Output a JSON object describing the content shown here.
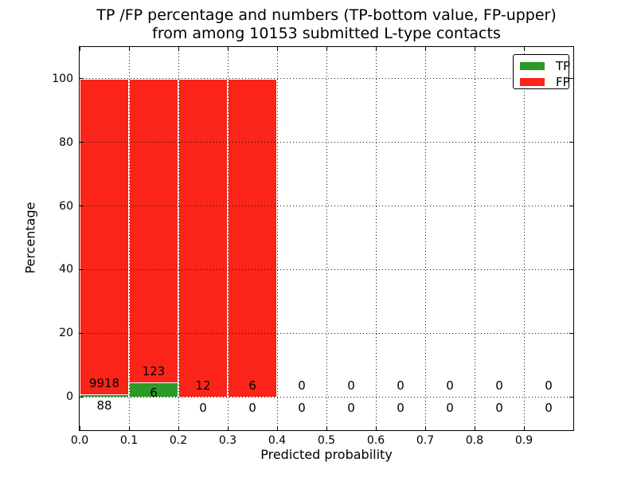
{
  "chart_data": {
    "type": "bar",
    "stacked": true,
    "title_lines": [
      "TP /FP percentage and numbers (TP-bottom value, FP-upper)",
      "from among 10153 submitted L-type contacts"
    ],
    "xlabel": "Predicted probability",
    "ylabel": "Percentage",
    "total_submitted": 10153,
    "xlim": [
      0.0,
      1.0
    ],
    "ylim": [
      -10.5,
      110
    ],
    "xticks": [
      0.0,
      0.1,
      0.2,
      0.3,
      0.4,
      0.5,
      0.6,
      0.7,
      0.8,
      0.9
    ],
    "xtick_labels": [
      "0.0",
      "0.1",
      "0.2",
      "0.3",
      "0.4",
      "0.5",
      "0.6",
      "0.7",
      "0.8",
      "0.9"
    ],
    "yticks": [
      0,
      20,
      40,
      60,
      80,
      100
    ],
    "ytick_labels": [
      "0",
      "20",
      "40",
      "60",
      "80",
      "100"
    ],
    "bin_edges": [
      0.0,
      0.1,
      0.2,
      0.3,
      0.4,
      0.5,
      0.6,
      0.7,
      0.8,
      0.9,
      1.0
    ],
    "grid": true,
    "legend_position": "upper right",
    "label_offset_pct": 3.5,
    "series": [
      {
        "name": "TP",
        "color": "#2a9b28",
        "counts": [
          88,
          6,
          0,
          0,
          0,
          0,
          0,
          0,
          0,
          0
        ],
        "percent": [
          0.88,
          4.65,
          0,
          0,
          0,
          0,
          0,
          0,
          0,
          0
        ]
      },
      {
        "name": "FP",
        "color": "#fb2419",
        "counts": [
          9918,
          123,
          12,
          6,
          0,
          0,
          0,
          0,
          0,
          0
        ],
        "percent": [
          99.12,
          95.35,
          100,
          100,
          0,
          0,
          0,
          0,
          0,
          0
        ]
      }
    ]
  }
}
